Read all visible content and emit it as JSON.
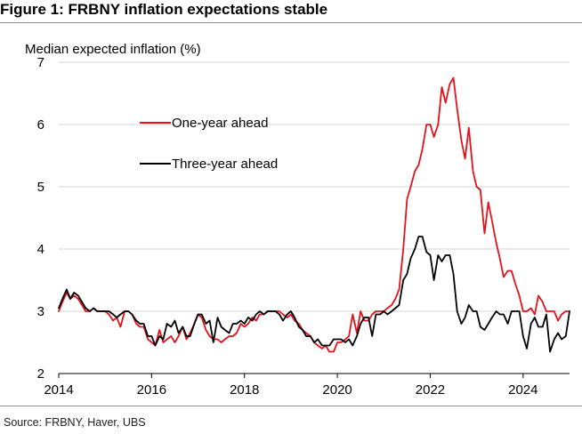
{
  "figure": {
    "title": "Figure 1: FRBNY inflation expectations stable",
    "source": "Source: FRBNY, Haver, UBS"
  },
  "chart_data": {
    "type": "line",
    "ylabel": "Median expected inflation (%)",
    "xlim": [
      2014.0,
      2025.0
    ],
    "ylim": [
      2,
      7
    ],
    "x_ticks": [
      2014,
      2016,
      2018,
      2020,
      2022,
      2024
    ],
    "y_ticks": [
      2,
      3,
      4,
      5,
      6,
      7
    ],
    "grid": "horizontal",
    "legend_placement": "upper-left",
    "series": [
      {
        "name": "One-year ahead",
        "color": "#e3121b",
        "points": [
          [
            2014.0,
            3.0
          ],
          [
            2014.08,
            3.15
          ],
          [
            2014.17,
            3.3
          ],
          [
            2014.25,
            3.2
          ],
          [
            2014.33,
            3.25
          ],
          [
            2014.42,
            3.2
          ],
          [
            2014.5,
            3.1
          ],
          [
            2014.58,
            3.0
          ],
          [
            2014.67,
            3.0
          ],
          [
            2014.75,
            3.05
          ],
          [
            2014.83,
            3.0
          ],
          [
            2014.92,
            3.0
          ],
          [
            2015.0,
            3.0
          ],
          [
            2015.08,
            2.95
          ],
          [
            2015.17,
            2.85
          ],
          [
            2015.25,
            2.9
          ],
          [
            2015.33,
            2.75
          ],
          [
            2015.42,
            3.0
          ],
          [
            2015.5,
            3.0
          ],
          [
            2015.58,
            2.95
          ],
          [
            2015.67,
            2.8
          ],
          [
            2015.75,
            2.75
          ],
          [
            2015.83,
            2.75
          ],
          [
            2015.92,
            2.55
          ],
          [
            2016.0,
            2.5
          ],
          [
            2016.08,
            2.45
          ],
          [
            2016.17,
            2.7
          ],
          [
            2016.25,
            2.5
          ],
          [
            2016.33,
            2.55
          ],
          [
            2016.42,
            2.6
          ],
          [
            2016.5,
            2.5
          ],
          [
            2016.58,
            2.6
          ],
          [
            2016.67,
            2.75
          ],
          [
            2016.75,
            2.55
          ],
          [
            2016.83,
            2.65
          ],
          [
            2016.92,
            2.8
          ],
          [
            2017.0,
            2.95
          ],
          [
            2017.08,
            2.9
          ],
          [
            2017.17,
            2.7
          ],
          [
            2017.25,
            2.6
          ],
          [
            2017.33,
            2.55
          ],
          [
            2017.42,
            2.55
          ],
          [
            2017.5,
            2.5
          ],
          [
            2017.58,
            2.55
          ],
          [
            2017.67,
            2.6
          ],
          [
            2017.75,
            2.6
          ],
          [
            2017.83,
            2.65
          ],
          [
            2017.92,
            2.8
          ],
          [
            2018.0,
            2.75
          ],
          [
            2018.08,
            2.8
          ],
          [
            2018.17,
            2.9
          ],
          [
            2018.25,
            2.85
          ],
          [
            2018.33,
            2.95
          ],
          [
            2018.42,
            2.95
          ],
          [
            2018.5,
            3.0
          ],
          [
            2018.58,
            3.0
          ],
          [
            2018.67,
            3.0
          ],
          [
            2018.75,
            3.0
          ],
          [
            2018.83,
            2.95
          ],
          [
            2018.92,
            2.9
          ],
          [
            2019.0,
            2.95
          ],
          [
            2019.08,
            2.85
          ],
          [
            2019.17,
            2.8
          ],
          [
            2019.25,
            2.7
          ],
          [
            2019.33,
            2.65
          ],
          [
            2019.42,
            2.6
          ],
          [
            2019.5,
            2.5
          ],
          [
            2019.58,
            2.45
          ],
          [
            2019.67,
            2.4
          ],
          [
            2019.75,
            2.45
          ],
          [
            2019.83,
            2.35
          ],
          [
            2019.92,
            2.35
          ],
          [
            2020.0,
            2.5
          ],
          [
            2020.08,
            2.5
          ],
          [
            2020.17,
            2.55
          ],
          [
            2020.25,
            2.6
          ],
          [
            2020.33,
            2.95
          ],
          [
            2020.42,
            2.65
          ],
          [
            2020.5,
            3.0
          ],
          [
            2020.58,
            2.85
          ],
          [
            2020.67,
            2.85
          ],
          [
            2020.75,
            2.95
          ],
          [
            2020.83,
            3.0
          ],
          [
            2020.92,
            3.0
          ],
          [
            2021.0,
            3.0
          ],
          [
            2021.08,
            3.05
          ],
          [
            2021.17,
            3.1
          ],
          [
            2021.25,
            3.2
          ],
          [
            2021.33,
            3.35
          ],
          [
            2021.42,
            4.0
          ],
          [
            2021.5,
            4.8
          ],
          [
            2021.58,
            5.0
          ],
          [
            2021.67,
            5.25
          ],
          [
            2021.75,
            5.35
          ],
          [
            2021.83,
            5.6
          ],
          [
            2021.92,
            6.0
          ],
          [
            2022.0,
            6.0
          ],
          [
            2022.08,
            5.8
          ],
          [
            2022.17,
            6.0
          ],
          [
            2022.25,
            6.6
          ],
          [
            2022.33,
            6.35
          ],
          [
            2022.42,
            6.65
          ],
          [
            2022.5,
            6.75
          ],
          [
            2022.58,
            6.25
          ],
          [
            2022.67,
            5.75
          ],
          [
            2022.75,
            5.45
          ],
          [
            2022.83,
            5.95
          ],
          [
            2022.92,
            5.25
          ],
          [
            2023.0,
            5.0
          ],
          [
            2023.08,
            4.95
          ],
          [
            2023.17,
            4.25
          ],
          [
            2023.25,
            4.75
          ],
          [
            2023.33,
            4.45
          ],
          [
            2023.42,
            4.1
          ],
          [
            2023.5,
            3.85
          ],
          [
            2023.58,
            3.55
          ],
          [
            2023.67,
            3.65
          ],
          [
            2023.75,
            3.65
          ],
          [
            2023.83,
            3.45
          ],
          [
            2023.92,
            3.25
          ],
          [
            2024.0,
            3.0
          ],
          [
            2024.08,
            3.0
          ],
          [
            2024.17,
            3.05
          ],
          [
            2024.25,
            2.95
          ],
          [
            2024.33,
            3.25
          ],
          [
            2024.42,
            3.15
          ],
          [
            2024.5,
            3.0
          ],
          [
            2024.58,
            3.0
          ],
          [
            2024.67,
            3.0
          ],
          [
            2024.75,
            2.85
          ],
          [
            2024.83,
            2.95
          ],
          [
            2024.92,
            3.0
          ],
          [
            2025.0,
            3.0
          ]
        ]
      },
      {
        "name": "Three-year ahead",
        "color": "#000000",
        "points": [
          [
            2014.0,
            3.05
          ],
          [
            2014.08,
            3.2
          ],
          [
            2014.17,
            3.35
          ],
          [
            2014.25,
            3.2
          ],
          [
            2014.33,
            3.3
          ],
          [
            2014.42,
            3.25
          ],
          [
            2014.5,
            3.15
          ],
          [
            2014.58,
            3.05
          ],
          [
            2014.67,
            3.0
          ],
          [
            2014.75,
            3.05
          ],
          [
            2014.83,
            3.0
          ],
          [
            2014.92,
            3.0
          ],
          [
            2015.0,
            3.0
          ],
          [
            2015.08,
            3.0
          ],
          [
            2015.17,
            2.95
          ],
          [
            2015.25,
            2.9
          ],
          [
            2015.33,
            2.95
          ],
          [
            2015.42,
            3.0
          ],
          [
            2015.5,
            3.0
          ],
          [
            2015.58,
            2.95
          ],
          [
            2015.67,
            2.85
          ],
          [
            2015.75,
            2.8
          ],
          [
            2015.83,
            2.8
          ],
          [
            2015.92,
            2.6
          ],
          [
            2016.0,
            2.6
          ],
          [
            2016.08,
            2.45
          ],
          [
            2016.17,
            2.6
          ],
          [
            2016.25,
            2.55
          ],
          [
            2016.33,
            2.8
          ],
          [
            2016.42,
            2.75
          ],
          [
            2016.5,
            2.85
          ],
          [
            2016.58,
            2.65
          ],
          [
            2016.67,
            2.75
          ],
          [
            2016.75,
            2.6
          ],
          [
            2016.83,
            2.6
          ],
          [
            2016.92,
            2.8
          ],
          [
            2017.0,
            2.95
          ],
          [
            2017.08,
            2.95
          ],
          [
            2017.17,
            2.8
          ],
          [
            2017.25,
            2.85
          ],
          [
            2017.33,
            2.5
          ],
          [
            2017.42,
            2.9
          ],
          [
            2017.5,
            2.75
          ],
          [
            2017.58,
            2.7
          ],
          [
            2017.67,
            2.65
          ],
          [
            2017.75,
            2.8
          ],
          [
            2017.83,
            2.8
          ],
          [
            2017.92,
            2.85
          ],
          [
            2018.0,
            2.8
          ],
          [
            2018.08,
            2.9
          ],
          [
            2018.17,
            2.85
          ],
          [
            2018.25,
            2.95
          ],
          [
            2018.33,
            3.0
          ],
          [
            2018.42,
            2.95
          ],
          [
            2018.5,
            3.0
          ],
          [
            2018.58,
            3.0
          ],
          [
            2018.67,
            3.0
          ],
          [
            2018.75,
            2.95
          ],
          [
            2018.83,
            2.85
          ],
          [
            2018.92,
            2.95
          ],
          [
            2019.0,
            3.0
          ],
          [
            2019.08,
            2.9
          ],
          [
            2019.17,
            2.75
          ],
          [
            2019.25,
            2.7
          ],
          [
            2019.33,
            2.6
          ],
          [
            2019.42,
            2.6
          ],
          [
            2019.5,
            2.5
          ],
          [
            2019.58,
            2.55
          ],
          [
            2019.67,
            2.45
          ],
          [
            2019.75,
            2.45
          ],
          [
            2019.83,
            2.45
          ],
          [
            2019.92,
            2.55
          ],
          [
            2020.0,
            2.55
          ],
          [
            2020.08,
            2.55
          ],
          [
            2020.17,
            2.5
          ],
          [
            2020.25,
            2.55
          ],
          [
            2020.33,
            2.45
          ],
          [
            2020.42,
            2.6
          ],
          [
            2020.5,
            2.8
          ],
          [
            2020.58,
            2.9
          ],
          [
            2020.67,
            2.9
          ],
          [
            2020.75,
            2.6
          ],
          [
            2020.83,
            2.95
          ],
          [
            2020.92,
            2.95
          ],
          [
            2021.0,
            3.0
          ],
          [
            2021.08,
            2.95
          ],
          [
            2021.17,
            3.0
          ],
          [
            2021.25,
            3.05
          ],
          [
            2021.33,
            3.1
          ],
          [
            2021.42,
            3.5
          ],
          [
            2021.5,
            3.6
          ],
          [
            2021.58,
            3.85
          ],
          [
            2021.67,
            4.0
          ],
          [
            2021.75,
            4.2
          ],
          [
            2021.83,
            4.2
          ],
          [
            2021.92,
            3.95
          ],
          [
            2022.0,
            3.9
          ],
          [
            2022.08,
            3.5
          ],
          [
            2022.17,
            3.9
          ],
          [
            2022.25,
            3.8
          ],
          [
            2022.33,
            3.9
          ],
          [
            2022.42,
            3.9
          ],
          [
            2022.5,
            3.6
          ],
          [
            2022.58,
            3.0
          ],
          [
            2022.67,
            2.8
          ],
          [
            2022.75,
            2.9
          ],
          [
            2022.83,
            3.1
          ],
          [
            2022.92,
            3.0
          ],
          [
            2023.0,
            3.0
          ],
          [
            2023.08,
            2.75
          ],
          [
            2023.17,
            2.7
          ],
          [
            2023.25,
            2.8
          ],
          [
            2023.33,
            2.9
          ],
          [
            2023.42,
            3.0
          ],
          [
            2023.5,
            2.95
          ],
          [
            2023.58,
            2.95
          ],
          [
            2023.67,
            2.8
          ],
          [
            2023.75,
            3.0
          ],
          [
            2023.83,
            3.0
          ],
          [
            2023.92,
            3.0
          ],
          [
            2024.0,
            2.6
          ],
          [
            2024.08,
            2.4
          ],
          [
            2024.17,
            2.8
          ],
          [
            2024.25,
            2.9
          ],
          [
            2024.33,
            2.75
          ],
          [
            2024.42,
            2.75
          ],
          [
            2024.5,
            2.95
          ],
          [
            2024.58,
            2.35
          ],
          [
            2024.67,
            2.55
          ],
          [
            2024.75,
            2.65
          ],
          [
            2024.83,
            2.55
          ],
          [
            2024.92,
            2.6
          ],
          [
            2025.0,
            3.0
          ]
        ]
      }
    ]
  }
}
